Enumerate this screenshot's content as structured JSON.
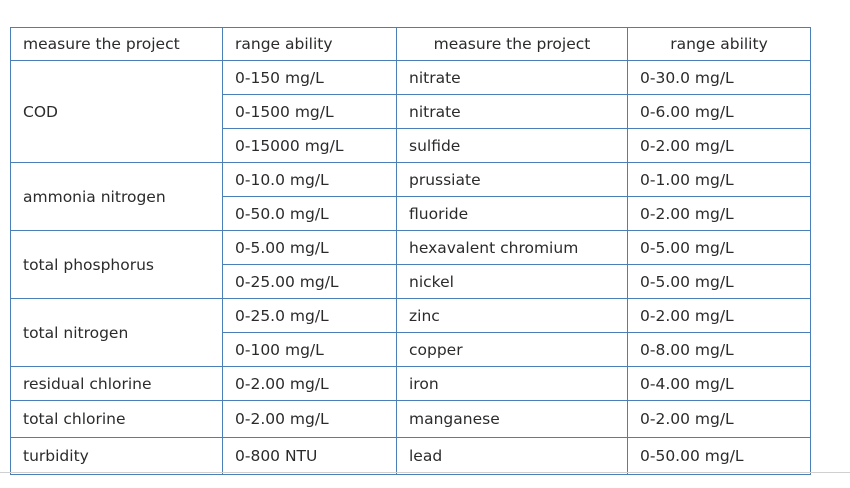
{
  "headers": [
    "measure the project",
    "range ability",
    "measure the project",
    "range ability"
  ],
  "left_groups": [
    {
      "project": "COD",
      "ranges": [
        "0-150 mg/L",
        "0-1500 mg/L",
        "0-15000 mg/L"
      ]
    },
    {
      "project": "ammonia nitrogen",
      "ranges": [
        "0-10.0 mg/L",
        "0-50.0 mg/L"
      ]
    },
    {
      "project": "total phosphorus",
      "ranges": [
        "0-5.00 mg/L",
        "0-25.00 mg/L"
      ]
    },
    {
      "project": "total nitrogen",
      "ranges": [
        "0-25.0 mg/L",
        "0-100 mg/L"
      ]
    },
    {
      "project": "residual chlorine",
      "ranges": [
        "0-2.00 mg/L"
      ]
    },
    {
      "project": "total chlorine",
      "ranges": [
        "0-2.00 mg/L"
      ]
    },
    {
      "project": "turbidity",
      "ranges": [
        "0-800 NTU"
      ]
    }
  ],
  "right_rows": [
    {
      "project": "nitrate",
      "range": "0-30.0 mg/L"
    },
    {
      "project": "nitrate",
      "range": "0-6.00 mg/L"
    },
    {
      "project": "sulfide",
      "range": "0-2.00 mg/L"
    },
    {
      "project": "prussiate",
      "range": "0-1.00 mg/L"
    },
    {
      "project": "fluoride",
      "range": "0-2.00 mg/L"
    },
    {
      "project": "hexavalent chromium",
      "range": "0-5.00 mg/L"
    },
    {
      "project": "nickel",
      "range": "0-5.00 mg/L"
    },
    {
      "project": "zinc",
      "range": "0-2.00 mg/L"
    },
    {
      "project": "copper",
      "range": "0-8.00 mg/L"
    },
    {
      "project": "iron",
      "range": "0-4.00 mg/L"
    },
    {
      "project": "manganese",
      "range": "0-2.00 mg/L"
    },
    {
      "project": "lead",
      "range": "0-50.00 mg/L"
    }
  ],
  "colors": {
    "border": "#4a7fb8",
    "text": "#2b2b2b"
  }
}
